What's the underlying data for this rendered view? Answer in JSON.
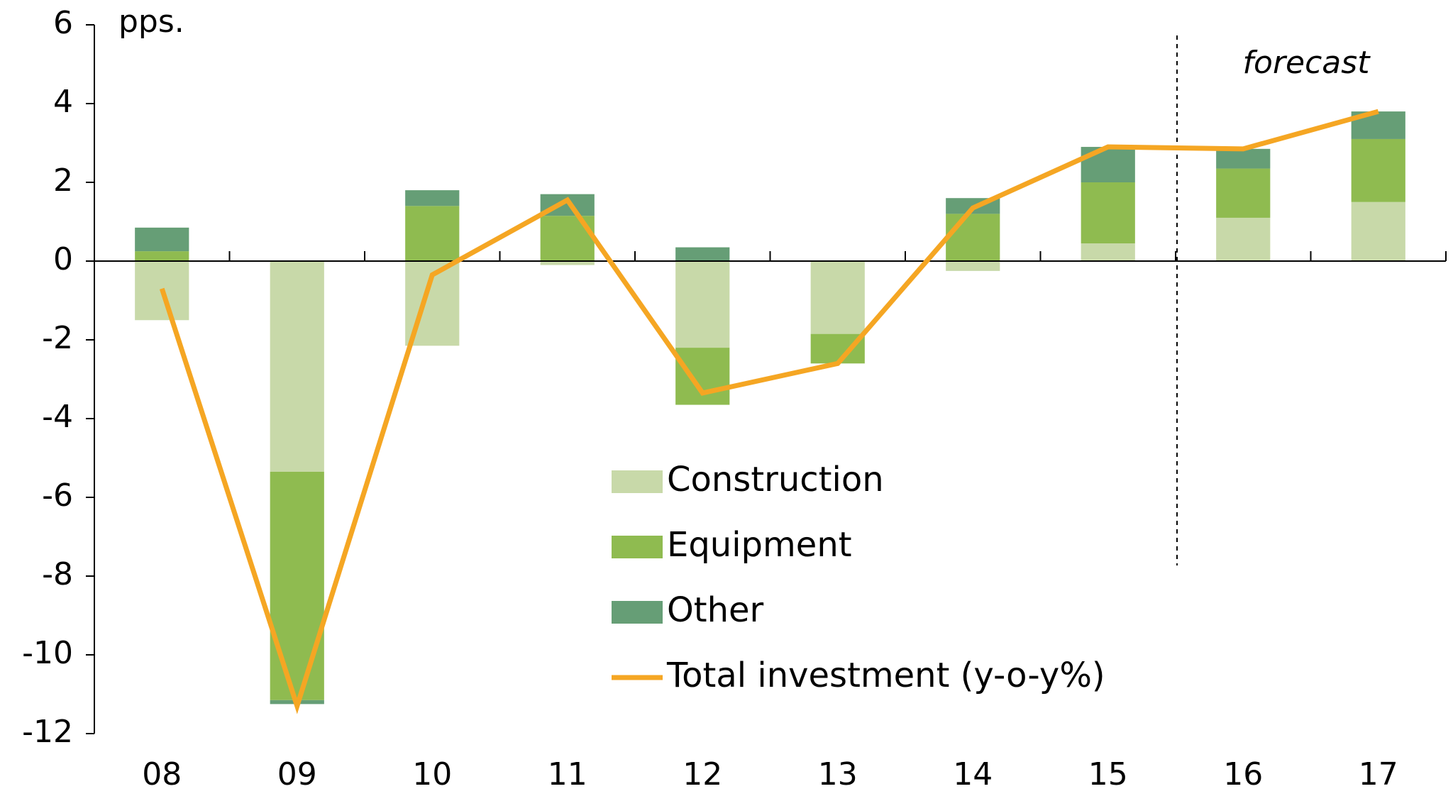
{
  "chart_data": {
    "type": "stacked-bar-line",
    "y_label": "pps.",
    "annotation": "forecast",
    "categories": [
      "08",
      "09",
      "10",
      "11",
      "12",
      "13",
      "14",
      "15",
      "16",
      "17"
    ],
    "series": [
      {
        "name": "Construction",
        "color": "#c8d9a9",
        "values": [
          -1.5,
          -5.35,
          -2.15,
          -0.1,
          -2.2,
          -1.85,
          -0.25,
          0.45,
          1.1,
          1.5
        ]
      },
      {
        "name": "Equipment",
        "color": "#8fbb50",
        "values": [
          0.25,
          -5.8,
          1.4,
          1.15,
          -1.45,
          -0.75,
          1.2,
          1.55,
          1.25,
          1.6
        ]
      },
      {
        "name": "Other",
        "color": "#669e76",
        "values": [
          0.6,
          -0.1,
          0.4,
          0.55,
          0.35,
          0,
          0.4,
          0.9,
          0.5,
          0.7
        ]
      },
      {
        "name": "Total investment (y-o-y%)",
        "color": "#f5a623",
        "type": "line",
        "values": [
          -0.7,
          -11.3,
          -0.35,
          1.55,
          -3.35,
          -2.6,
          1.35,
          2.9,
          2.85,
          3.8
        ]
      }
    ],
    "ylim": [
      -12,
      6
    ],
    "yticks": [
      -12,
      -10,
      -8,
      -6,
      -4,
      -2,
      0,
      2,
      4,
      6
    ]
  }
}
